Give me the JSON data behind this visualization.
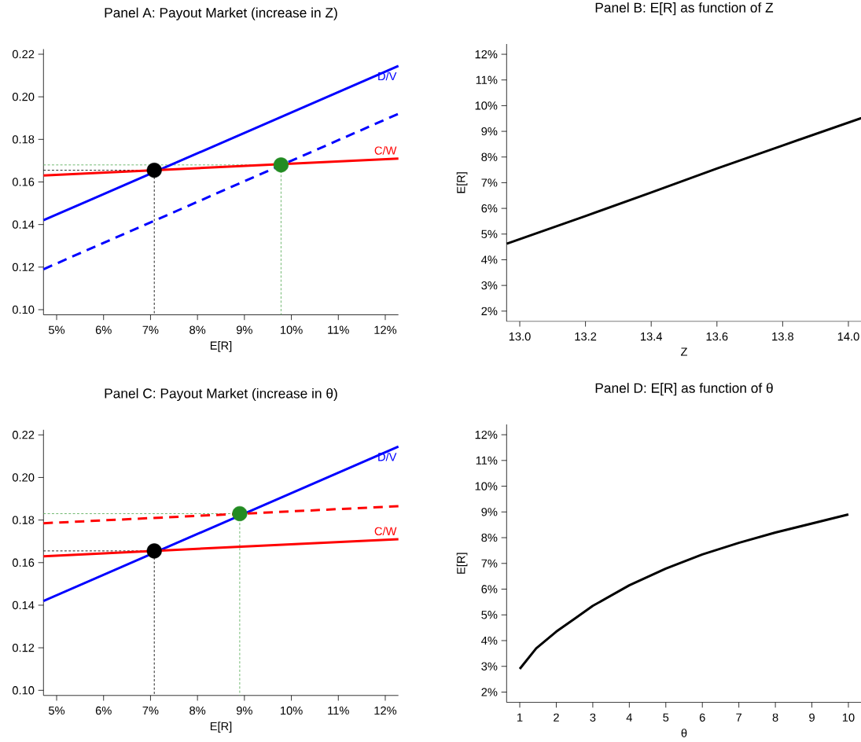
{
  "chart_data": [
    {
      "type": "line",
      "title": "Panel A: Payout Market (increase in Z)",
      "xlabel": "E[R]",
      "xlim": [
        4.72,
        12.28
      ],
      "ylim": [
        0.0976,
        0.2224
      ],
      "xticks": [
        {
          "value": 5,
          "label": "5%"
        },
        {
          "value": 6,
          "label": "6%"
        },
        {
          "value": 7,
          "label": "7%"
        },
        {
          "value": 8,
          "label": "8%"
        },
        {
          "value": 9,
          "label": "9%"
        },
        {
          "value": 10,
          "label": "10%"
        },
        {
          "value": 11,
          "label": "11%"
        },
        {
          "value": 12,
          "label": "12%"
        }
      ],
      "yticks": [
        {
          "value": 0.1,
          "label": "0.10"
        },
        {
          "value": 0.12,
          "label": "0.12"
        },
        {
          "value": 0.14,
          "label": "0.14"
        },
        {
          "value": 0.16,
          "label": "0.16"
        },
        {
          "value": 0.18,
          "label": "0.18"
        },
        {
          "value": 0.2,
          "label": "0.20"
        },
        {
          "value": 0.22,
          "label": "0.22"
        }
      ],
      "series": [
        {
          "color": "#000000",
          "line_style": "dotted",
          "x": [
            4.72,
            7.08,
            7.08
          ],
          "values": [
            0.1655,
            0.1655,
            0.0976
          ]
        },
        {
          "color": "#5aae5a",
          "line_style": "dotted",
          "x": [
            4.72,
            9.78,
            9.78
          ],
          "values": [
            0.168,
            0.168,
            0.0976
          ]
        },
        {
          "name": "D/V",
          "color": "#0000ff",
          "line_style": "solid",
          "x": [
            4.72,
            12.28
          ],
          "values": [
            0.142,
            0.2145
          ]
        },
        {
          "color": "#0000ff",
          "line_style": "dashed",
          "x": [
            4.72,
            12.28
          ],
          "values": [
            0.119,
            0.192
          ]
        },
        {
          "name": "C/W",
          "color": "#ff0000",
          "line_style": "solid",
          "x": [
            4.72,
            12.28
          ],
          "values": [
            0.163,
            0.171
          ]
        },
        {
          "type": "scatter",
          "color": "#000000",
          "marker": "circle",
          "x": [
            7.08
          ],
          "values": [
            0.1655
          ]
        },
        {
          "type": "scatter",
          "color": "#228b22",
          "marker": "circle",
          "x": [
            9.78
          ],
          "values": [
            0.168
          ]
        }
      ]
    },
    {
      "type": "line",
      "title": "Panel B: E[R] as function of Z",
      "xlabel": "Z",
      "ylabel": "E[R]",
      "xlim": [
        12.96,
        14.04
      ],
      "ylim": [
        1.6,
        12.4
      ],
      "xticks": [
        {
          "value": 13,
          "label": "13.0"
        },
        {
          "value": 13.2,
          "label": "13.2"
        },
        {
          "value": 13.4,
          "label": "13.4"
        },
        {
          "value": 13.6,
          "label": "13.6"
        },
        {
          "value": 13.8,
          "label": "13.8"
        },
        {
          "value": 14,
          "label": "14.0"
        }
      ],
      "yticks": [
        {
          "value": 2,
          "label": "2%"
        },
        {
          "value": 3,
          "label": "3%"
        },
        {
          "value": 4,
          "label": "4%"
        },
        {
          "value": 5,
          "label": "5%"
        },
        {
          "value": 6,
          "label": "6%"
        },
        {
          "value": 7,
          "label": "7%"
        },
        {
          "value": 8,
          "label": "8%"
        },
        {
          "value": 9,
          "label": "9%"
        },
        {
          "value": 10,
          "label": "10%"
        },
        {
          "value": 11,
          "label": "11%"
        },
        {
          "value": 12,
          "label": "12%"
        }
      ],
      "series": [
        {
          "color": "#000000",
          "line_style": "solid",
          "x": [
            12.96,
            13.2,
            13.4,
            13.6,
            13.8,
            14.04
          ],
          "values": [
            4.62,
            5.7,
            6.62,
            7.55,
            8.45,
            9.52
          ]
        }
      ]
    },
    {
      "type": "line",
      "title": "Panel C: Payout Market (increase in θ)",
      "xlabel": "E[R]",
      "xlim": [
        4.72,
        12.28
      ],
      "ylim": [
        0.0976,
        0.2224
      ],
      "xticks": [
        {
          "value": 5,
          "label": "5%"
        },
        {
          "value": 6,
          "label": "6%"
        },
        {
          "value": 7,
          "label": "7%"
        },
        {
          "value": 8,
          "label": "8%"
        },
        {
          "value": 9,
          "label": "9%"
        },
        {
          "value": 10,
          "label": "10%"
        },
        {
          "value": 11,
          "label": "11%"
        },
        {
          "value": 12,
          "label": "12%"
        }
      ],
      "yticks": [
        {
          "value": 0.1,
          "label": "0.10"
        },
        {
          "value": 0.12,
          "label": "0.12"
        },
        {
          "value": 0.14,
          "label": "0.14"
        },
        {
          "value": 0.16,
          "label": "0.16"
        },
        {
          "value": 0.18,
          "label": "0.18"
        },
        {
          "value": 0.2,
          "label": "0.20"
        },
        {
          "value": 0.22,
          "label": "0.22"
        }
      ],
      "series": [
        {
          "color": "#000000",
          "line_style": "dotted",
          "x": [
            4.72,
            7.08,
            7.08
          ],
          "values": [
            0.1655,
            0.1655,
            0.0976
          ]
        },
        {
          "color": "#5aae5a",
          "line_style": "dotted",
          "x": [
            4.72,
            8.9,
            8.9
          ],
          "values": [
            0.183,
            0.183,
            0.0976
          ]
        },
        {
          "name": "D/V",
          "color": "#0000ff",
          "line_style": "solid",
          "x": [
            4.72,
            12.28
          ],
          "values": [
            0.142,
            0.2145
          ]
        },
        {
          "name": "C/W",
          "color": "#ff0000",
          "line_style": "solid",
          "x": [
            4.72,
            12.28
          ],
          "values": [
            0.163,
            0.171
          ]
        },
        {
          "color": "#ff0000",
          "line_style": "dashed",
          "x": [
            4.72,
            12.28
          ],
          "values": [
            0.1785,
            0.1865
          ]
        },
        {
          "type": "scatter",
          "color": "#000000",
          "marker": "circle",
          "x": [
            7.08
          ],
          "values": [
            0.1655
          ]
        },
        {
          "type": "scatter",
          "color": "#228b22",
          "marker": "circle",
          "x": [
            8.9
          ],
          "values": [
            0.183
          ]
        }
      ]
    },
    {
      "type": "line",
      "title": "Panel D: E[R] as function of θ",
      "xlabel": "θ",
      "ylabel": "E[R]",
      "xlim": [
        0.64,
        10.36
      ],
      "ylim": [
        1.6,
        12.4
      ],
      "xticks": [
        1,
        2,
        3,
        4,
        5,
        6,
        7,
        8,
        9,
        10
      ],
      "yticks": [
        {
          "value": 2,
          "label": "2%"
        },
        {
          "value": 3,
          "label": "3%"
        },
        {
          "value": 4,
          "label": "4%"
        },
        {
          "value": 5,
          "label": "5%"
        },
        {
          "value": 6,
          "label": "6%"
        },
        {
          "value": 7,
          "label": "7%"
        },
        {
          "value": 8,
          "label": "8%"
        },
        {
          "value": 9,
          "label": "9%"
        },
        {
          "value": 10,
          "label": "10%"
        },
        {
          "value": 11,
          "label": "11%"
        },
        {
          "value": 12,
          "label": "12%"
        }
      ],
      "series": [
        {
          "color": "#000000",
          "line_style": "solid",
          "x": [
            1,
            1.45,
            2,
            2.5,
            3,
            4,
            5,
            6,
            7,
            8,
            9,
            10
          ],
          "values": [
            2.9,
            3.7,
            4.35,
            4.85,
            5.35,
            6.15,
            6.8,
            7.35,
            7.8,
            8.2,
            8.55,
            8.9
          ]
        }
      ]
    }
  ]
}
